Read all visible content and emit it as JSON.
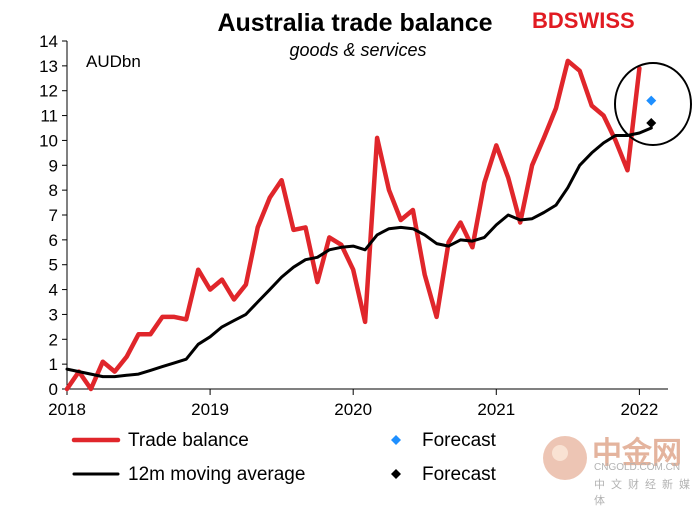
{
  "brand": {
    "part1": "BD",
    "part2": "SWISS"
  },
  "watermark": {
    "logo_text": "中金网",
    "domain": "CNGOLD.COM.CN",
    "tagline": "中文财经新媒体"
  },
  "colors": {
    "trade_balance": "#e0262b",
    "moving_average": "#000000",
    "forecast_trade": "#1e8fff",
    "forecast_ma": "#000000"
  },
  "chart_data": {
    "type": "line",
    "title": "Australia trade balance",
    "subtitle": "goods & services",
    "unit_label": "AUDbn",
    "xlabel": "",
    "ylabel": "",
    "xlim": [
      2018.0,
      2022.2
    ],
    "ylim": [
      0,
      14
    ],
    "y_ticks": [
      0,
      1,
      2,
      3,
      4,
      5,
      6,
      7,
      8,
      9,
      10,
      11,
      12,
      13,
      14
    ],
    "x_ticks": [
      2018,
      2019,
      2020,
      2021,
      2022
    ],
    "x_tick_labels": [
      "2018",
      "2019",
      "2020",
      "2021",
      "2022"
    ],
    "grid": false,
    "legend_position": "bottom",
    "series": [
      {
        "name": "Trade balance",
        "style": "line",
        "x": [
          2018.0,
          2018.083,
          2018.167,
          2018.25,
          2018.333,
          2018.417,
          2018.5,
          2018.583,
          2018.667,
          2018.75,
          2018.833,
          2018.917,
          2019.0,
          2019.083,
          2019.167,
          2019.25,
          2019.333,
          2019.417,
          2019.5,
          2019.583,
          2019.667,
          2019.75,
          2019.833,
          2019.917,
          2020.0,
          2020.083,
          2020.167,
          2020.25,
          2020.333,
          2020.417,
          2020.5,
          2020.583,
          2020.667,
          2020.75,
          2020.833,
          2020.917,
          2021.0,
          2021.083,
          2021.167,
          2021.25,
          2021.333,
          2021.417,
          2021.5,
          2021.583,
          2021.667,
          2021.75,
          2021.833,
          2021.917,
          2022.0
        ],
        "y": [
          0.0,
          0.7,
          0.0,
          1.1,
          0.7,
          1.3,
          2.2,
          2.2,
          2.9,
          2.9,
          2.8,
          4.8,
          4.0,
          4.4,
          3.6,
          4.2,
          6.5,
          7.7,
          8.4,
          6.4,
          6.5,
          4.3,
          6.1,
          5.8,
          4.8,
          2.7,
          10.1,
          8.0,
          6.8,
          7.2,
          4.6,
          2.9,
          5.9,
          6.7,
          5.7,
          8.3,
          9.8,
          8.5,
          6.7,
          9.0,
          10.1,
          11.3,
          13.2,
          12.8,
          11.4,
          11.0,
          10.0,
          8.8,
          12.9
        ]
      },
      {
        "name": "12m moving average",
        "style": "line",
        "x": [
          2018.0,
          2018.083,
          2018.167,
          2018.25,
          2018.333,
          2018.417,
          2018.5,
          2018.583,
          2018.667,
          2018.75,
          2018.833,
          2018.917,
          2019.0,
          2019.083,
          2019.167,
          2019.25,
          2019.333,
          2019.417,
          2019.5,
          2019.583,
          2019.667,
          2019.75,
          2019.833,
          2019.917,
          2020.0,
          2020.083,
          2020.167,
          2020.25,
          2020.333,
          2020.417,
          2020.5,
          2020.583,
          2020.667,
          2020.75,
          2020.833,
          2020.917,
          2021.0,
          2021.083,
          2021.167,
          2021.25,
          2021.333,
          2021.417,
          2021.5,
          2021.583,
          2021.667,
          2021.75,
          2021.833,
          2021.917,
          2022.0,
          2022.083
        ],
        "y": [
          0.8,
          0.7,
          0.6,
          0.5,
          0.5,
          0.55,
          0.6,
          0.75,
          0.9,
          1.05,
          1.2,
          1.8,
          2.1,
          2.5,
          2.75,
          3.0,
          3.5,
          4.0,
          4.5,
          4.9,
          5.2,
          5.3,
          5.6,
          5.7,
          5.75,
          5.6,
          6.2,
          6.45,
          6.5,
          6.45,
          6.2,
          5.85,
          5.75,
          6.0,
          5.95,
          6.1,
          6.6,
          7.0,
          6.8,
          6.85,
          7.1,
          7.4,
          8.1,
          9.0,
          9.5,
          9.9,
          10.2,
          10.2,
          10.3,
          10.5
        ]
      },
      {
        "name": "Forecast",
        "style": "marker",
        "marker": "diamond",
        "x": [
          2022.083
        ],
        "y": [
          11.6
        ]
      },
      {
        "name": "Forecast",
        "style": "marker",
        "marker": "diamond",
        "x": [
          2022.083
        ],
        "y": [
          10.7
        ]
      }
    ]
  }
}
